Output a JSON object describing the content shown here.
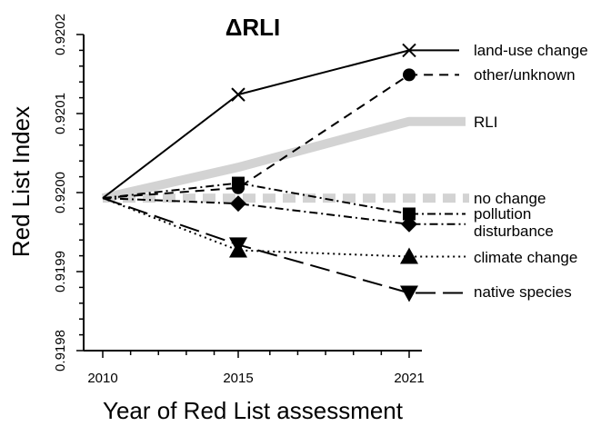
{
  "chart_data": {
    "type": "line",
    "title": "ΔRLI",
    "xlabel": "Year of Red List assessment",
    "ylabel": "Red List Index",
    "x": [
      2010,
      2015,
      2021
    ],
    "xlim": [
      2010,
      2021
    ],
    "ylim": [
      0.9198,
      0.9202
    ],
    "x_ticks": [
      "2010",
      "2015",
      "2021"
    ],
    "y_ticks": [
      "0.9198",
      "0.9199",
      "0.9200",
      "0.9201",
      "0.9202"
    ],
    "grid": false,
    "series": [
      {
        "name": "land-use change",
        "values": [
          0.919993,
          0.920124,
          0.92018
        ],
        "marker": "x",
        "dash": "solid",
        "color": "#000000"
      },
      {
        "name": "other/unknown",
        "values": [
          0.919993,
          0.920006,
          0.920149
        ],
        "marker": "circle",
        "dash": "dashed",
        "color": "#000000"
      },
      {
        "name": "RLI",
        "values": [
          0.919993,
          0.920032,
          0.92009
        ],
        "marker": "none",
        "dash": "solid",
        "color": "#d3d3d3",
        "thick": true
      },
      {
        "name": "no change",
        "values": [
          0.919993,
          0.919993,
          0.919993
        ],
        "marker": "none",
        "dash": "dashed",
        "color": "#d3d3d3",
        "thick": true
      },
      {
        "name": "pollution",
        "values": [
          0.919993,
          0.920012,
          0.919973
        ],
        "marker": "square",
        "dash": "dotdash",
        "color": "#000000"
      },
      {
        "name": "disturbance",
        "values": [
          0.919993,
          0.919986,
          0.91996
        ],
        "marker": "diamond",
        "dash": "dotdash",
        "color": "#000000"
      },
      {
        "name": "climate change",
        "values": [
          0.919993,
          0.919927,
          0.919919
        ],
        "marker": "triangle",
        "dash": "dotted",
        "color": "#000000"
      },
      {
        "name": "native species",
        "values": [
          0.919993,
          0.919934,
          0.919873
        ],
        "marker": "triangle-down",
        "dash": "longdash",
        "color": "#000000"
      }
    ]
  }
}
